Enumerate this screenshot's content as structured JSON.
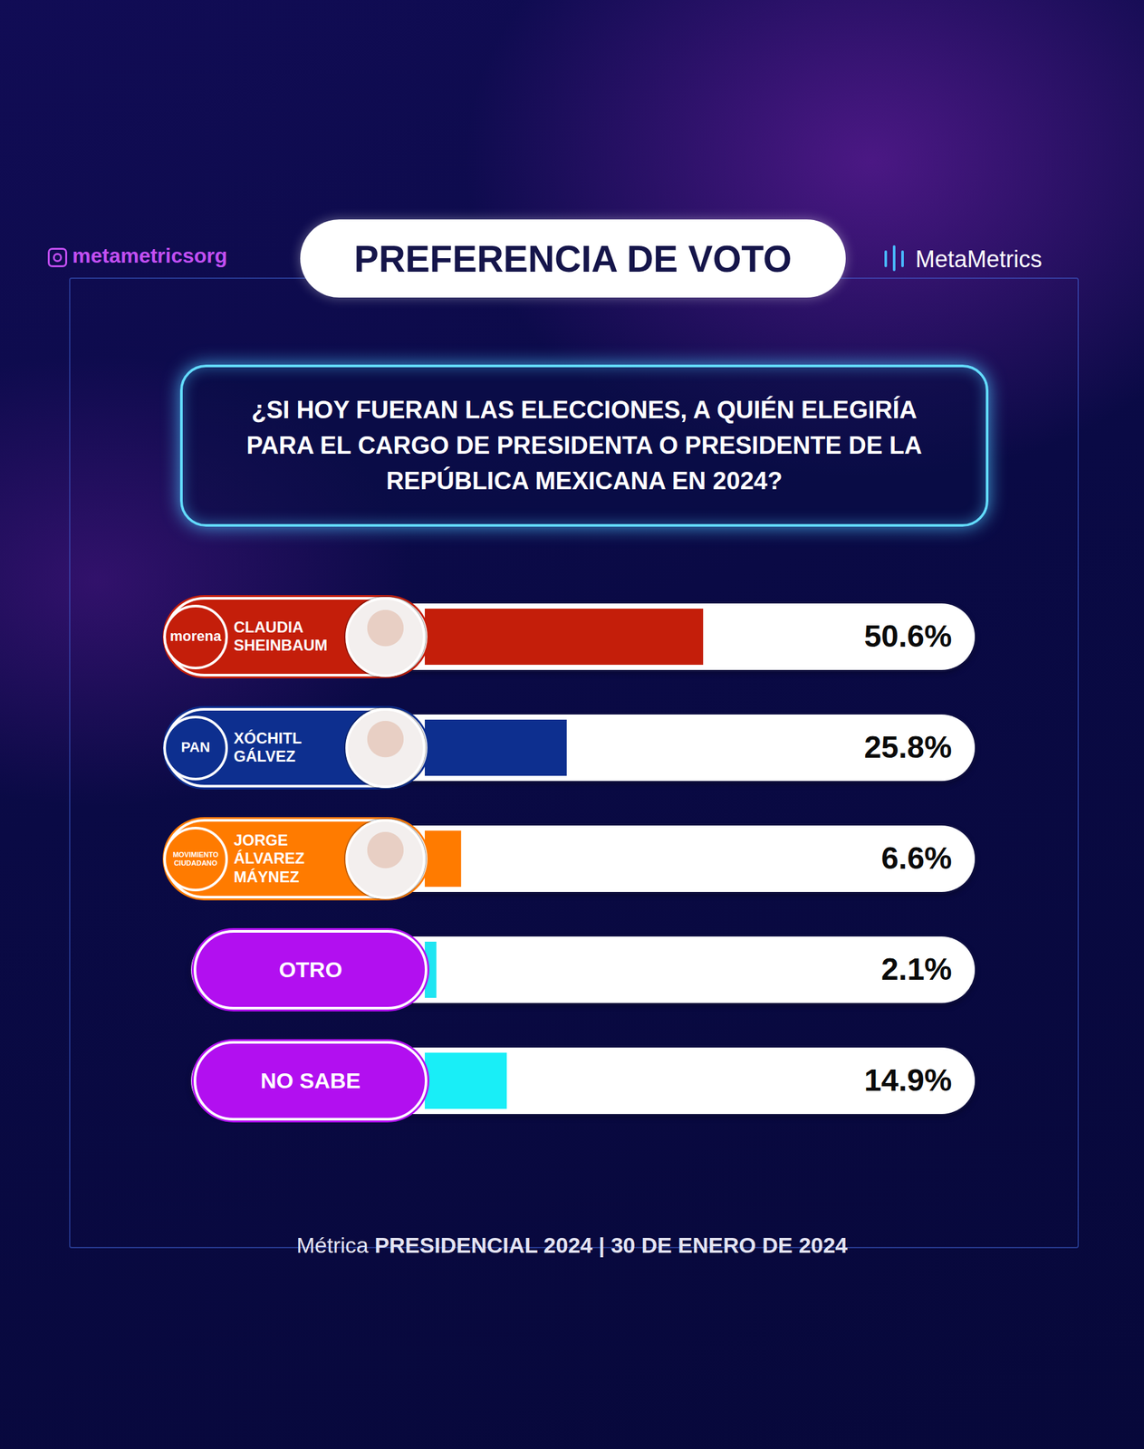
{
  "chart_data": {
    "type": "bar",
    "orientation": "horizontal",
    "title": "PREFERENCIA DE VOTO",
    "subtitle": "¿SI HOY FUERAN LAS ELECCIONES, A QUIÉN ELEGIRÍA PARA EL CARGO DE PRESIDENTA O PRESIDENTE DE LA REPÚBLICA MEXICANA EN 2024?",
    "handle": "metametricsorg",
    "brand": "MetaMetrics",
    "caption": "Métrica PRESIDENCIAL 2024 | 30 DE ENERO DE 2024",
    "categories": [
      "CLAUDIA SHEINBAUM",
      "XÓCHITL GÁLVEZ",
      "JORGE ÁLVAREZ MÁYNEZ",
      "OTRO",
      "NO SABE"
    ],
    "parties": [
      "morena",
      "PAN",
      "MOVIMIENTO CIUDADANO",
      null,
      null
    ],
    "values": [
      50.6,
      25.8,
      6.6,
      2.1,
      14.9
    ],
    "value_labels": [
      "50.6%",
      "25.8%",
      "6.6%",
      "2.1%",
      "14.9%"
    ],
    "colors": [
      "#c41e0a",
      "#0d2f8f",
      "#ff7b00",
      "#1fe5f2",
      "#19eef7"
    ],
    "data_labels": true,
    "xlim": [
      0,
      100
    ],
    "xticks": [],
    "tick_labels": false,
    "grid": false
  }
}
